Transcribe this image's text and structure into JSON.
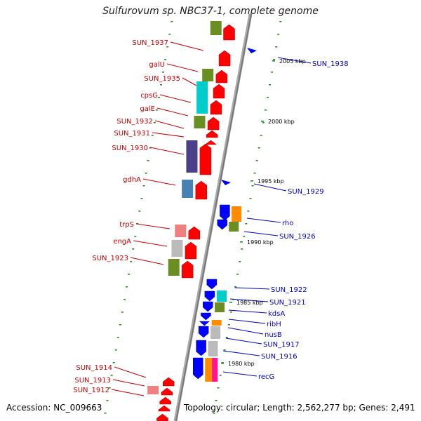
{
  "header": {
    "title": "Sulfurovum sp. NBC37-1, complete genome"
  },
  "footer": {
    "accession": "Accession: NC_009663",
    "summary": "Topology: circular; Length: 2,562,277 bp; Genes: 2,491"
  },
  "kbp_ticks": [
    "2005 kbp",
    "2000 kbp",
    "1995 kbp",
    "1990 kbp",
    "1985 kbp",
    "1980 kbp"
  ],
  "left_genes": [
    "SUN_1937",
    "galU",
    "SUN_1935",
    "cpsG",
    "galE",
    "SUN_1932",
    "SUN_1931",
    "SUN_1930",
    "gdhA",
    "trpS",
    "engA",
    "SUN_1923",
    "SUN_1914",
    "SUN_1913",
    "SUN_1912"
  ],
  "right_genes": [
    "SUN_1938",
    "SUN_1929",
    "rho",
    "SUN_1926",
    "SUN_1922",
    "SUN_1921",
    "kdsA",
    "ribH",
    "nusB",
    "SUN_1917",
    "SUN_1916",
    "recG"
  ],
  "colors": {
    "left_label": "#cc0000",
    "right_label": "#0000cc",
    "forward_gene": "#ff0000",
    "reverse_gene": "#0000ff",
    "backbone": "#888888",
    "tick": "#228b22",
    "cog_green": "#6b8e23",
    "cog_cyan": "#00cccc",
    "cog_purple": "#4b3f8a",
    "cog_steel": "#4682b4",
    "cog_pink": "#f08080",
    "cog_gray": "#bbbbbb",
    "cog_orange": "#ff8c00",
    "cog_magenta": "#ff1493"
  }
}
